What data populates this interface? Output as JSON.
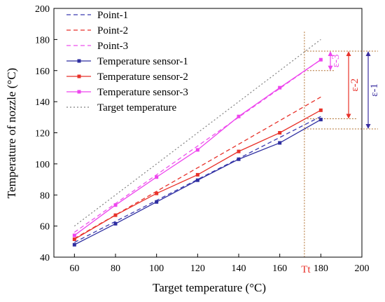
{
  "chart_data": {
    "type": "line",
    "xlabel": "Target temperature  (°C)",
    "ylabel": "Temperature of nozzle (°C)",
    "xlim": [
      50,
      200
    ],
    "ylim": [
      40,
      200
    ],
    "xticks": [
      "60",
      "80",
      "100",
      "120",
      "140",
      "160",
      "180",
      "200"
    ],
    "yticks": [
      "40",
      "60",
      "80",
      "100",
      "120",
      "140",
      "160",
      "180",
      "200"
    ],
    "legend_position": "top-left",
    "series": [
      {
        "name": "Point-1",
        "style": "dashed",
        "color": "#3a3ab0",
        "x": [
          60,
          180
        ],
        "y": [
          49.5,
          130.5
        ]
      },
      {
        "name": "Point-2",
        "style": "dashed",
        "color": "#e8322a",
        "x": [
          60,
          180
        ],
        "y": [
          52,
          143
        ]
      },
      {
        "name": "Point-3",
        "style": "dashed",
        "color": "#ee52ee",
        "x": [
          60,
          180
        ],
        "y": [
          56,
          167
        ]
      },
      {
        "name": "Temperature sensor-1",
        "style": "solid-marker",
        "color": "#2e2ea0",
        "x": [
          60,
          80,
          100,
          120,
          140,
          160,
          180
        ],
        "y": [
          48,
          61.5,
          75.5,
          89.5,
          103,
          113.5,
          128.5
        ]
      },
      {
        "name": "Temperature sensor-2",
        "style": "solid-marker",
        "color": "#e8322a",
        "x": [
          60,
          80,
          100,
          120,
          140,
          160,
          180
        ],
        "y": [
          51.5,
          67,
          81,
          93,
          108,
          120,
          134.5
        ]
      },
      {
        "name": "Temperature sensor-3",
        "style": "solid-marker",
        "color": "#ee45ee",
        "x": [
          60,
          80,
          100,
          120,
          140,
          160,
          180
        ],
        "y": [
          54,
          73.5,
          91.5,
          109,
          130.5,
          149,
          167
        ]
      },
      {
        "name": "Target temperature",
        "style": "dotted",
        "color": "#808080",
        "x": [
          60,
          180
        ],
        "y": [
          60,
          180
        ]
      }
    ],
    "annotations": {
      "tt_label": "Tt",
      "tt_x": 172,
      "eps1_label": "ε-1",
      "eps2_label": "ε-2",
      "eps3_label": "ε-3",
      "eps1_range": [
        122.5,
        172.5
      ],
      "eps2_range": [
        129,
        172.5
      ],
      "eps3_range": [
        160,
        172.5
      ],
      "color_tt": "#e8322a",
      "color_guides": "#b07030"
    }
  }
}
